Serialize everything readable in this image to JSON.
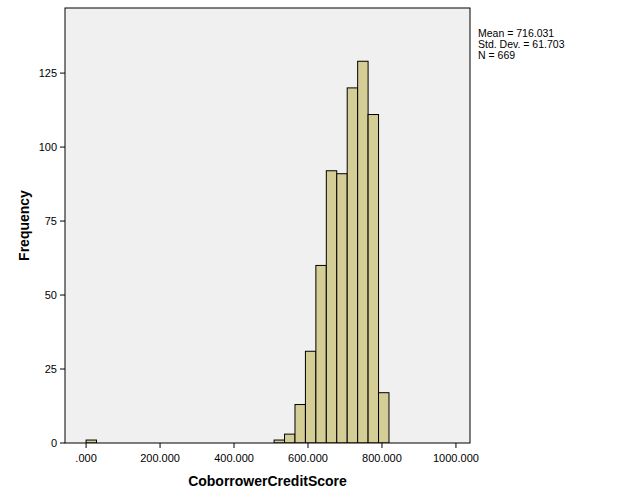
{
  "chart_data": {
    "type": "histogram",
    "x_label": "CoborrowerCreditScore",
    "y_label": "Frequency",
    "annotations": [
      "Mean = 716.031",
      "Std. Dev. = 61.703",
      "N = 669"
    ],
    "bins": [
      0,
      28.24,
      56.48,
      84.72,
      112.96,
      141.2,
      169.44,
      197.68,
      225.92,
      254.16,
      282.4,
      310.64,
      338.88,
      367.12,
      395.36,
      423.6,
      451.84,
      480.08,
      508.32,
      536.56,
      564.8,
      593.04,
      621.28,
      649.52,
      677.76,
      706,
      734.24,
      762.48,
      790.72,
      818.96
    ],
    "values": [
      1,
      0,
      0,
      0,
      0,
      0,
      0,
      0,
      0,
      0,
      0,
      0,
      0,
      0,
      0,
      0,
      0,
      0,
      1,
      3,
      13,
      31,
      60,
      92,
      91,
      120,
      129,
      111,
      17
    ],
    "color": "#d4cd96",
    "xlim": [
      -57,
      1038
    ],
    "ylim": [
      0,
      147
    ],
    "xticks": [
      {
        "value": 0,
        "label": ".000"
      },
      {
        "value": 200,
        "label": "200.000"
      },
      {
        "value": 400,
        "label": "400.000"
      },
      {
        "value": 600,
        "label": "600.000"
      },
      {
        "value": 800,
        "label": "800.000"
      },
      {
        "value": 1000,
        "label": "1000.000"
      }
    ],
    "yticks": [
      0,
      25,
      50,
      75,
      100,
      125
    ],
    "grid": false
  }
}
